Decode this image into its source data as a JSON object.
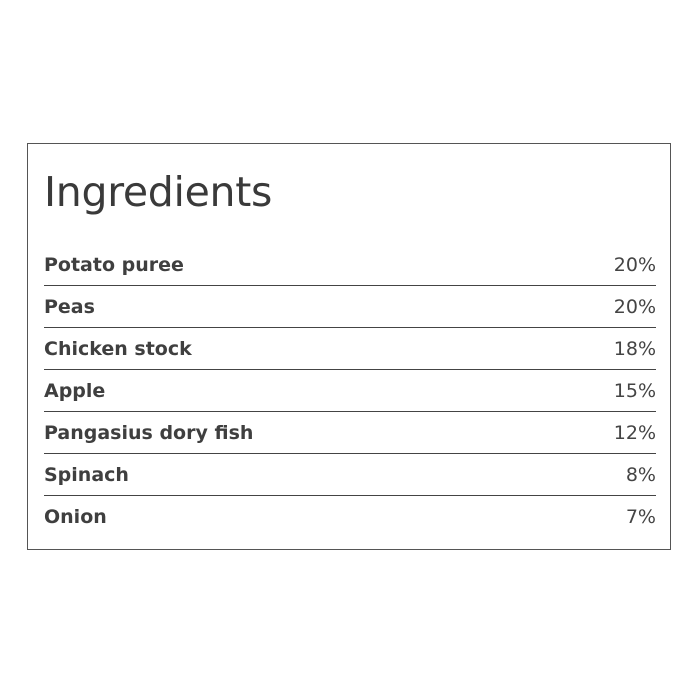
{
  "title": "Ingredients",
  "ingredients": [
    {
      "name": "Potato puree",
      "percent": "20%"
    },
    {
      "name": "Peas",
      "percent": "20%"
    },
    {
      "name": "Chicken stock",
      "percent": "18%"
    },
    {
      "name": "Apple",
      "percent": "15%"
    },
    {
      "name": "Pangasius dory fish",
      "percent": "12%"
    },
    {
      "name": "Spinach",
      "percent": "8%"
    },
    {
      "name": "Onion",
      "percent": "7%"
    }
  ]
}
